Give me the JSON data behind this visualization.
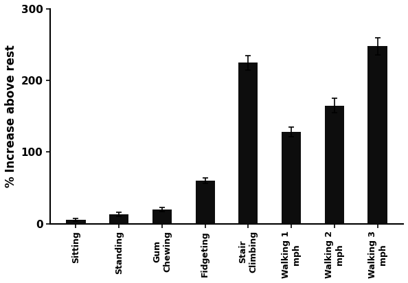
{
  "categories": [
    "Sitting",
    "Standing",
    "Gum\nChewing",
    "Fidgeting",
    "Stair\nClimbing",
    "Walking 1\nmph",
    "Walking 2\nmph",
    "Walking 3\nmph"
  ],
  "values": [
    5,
    13,
    20,
    60,
    225,
    128,
    165,
    248
  ],
  "errors": [
    2,
    3,
    3,
    4,
    10,
    7,
    10,
    12
  ],
  "bar_color": "#0d0d0d",
  "ylabel": "% Increase above rest",
  "ylim": [
    0,
    300
  ],
  "yticks": [
    0,
    100,
    200,
    300
  ],
  "background_color": "#ffffff",
  "bar_width": 0.45,
  "error_capsize": 3,
  "error_linewidth": 1.2,
  "ylabel_fontsize": 12,
  "tick_fontsize": 11,
  "tick_label_fontsize": 9
}
